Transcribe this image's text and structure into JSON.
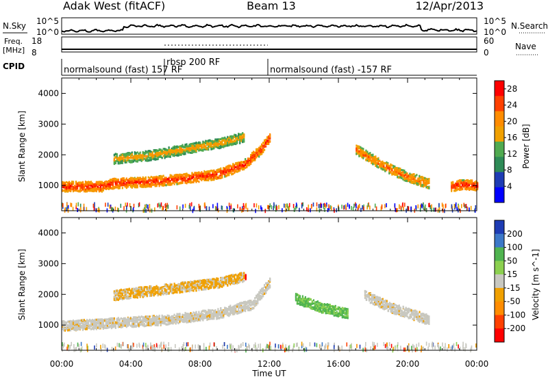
{
  "header": {
    "radar": "Adak West (fitACF)",
    "beam": "Beam 13",
    "date": "12/Apr/2013"
  },
  "strip_panels": {
    "nsky_label": "N.Sky",
    "nsearch_label": "N.Search",
    "freq_label": "Freq.",
    "freq_unit": "[MHz]",
    "nave_label": "Nave",
    "cpid_label": "CPID",
    "noise_ticks_left": [
      "10^5",
      "10^0"
    ],
    "noise_ticks_right": [
      "10^5",
      "10^0"
    ],
    "freq_ticks": [
      "18",
      "8"
    ],
    "nave_ticks": [
      "60",
      "0"
    ],
    "cpid_segments": [
      {
        "label": "normalsound (fast) 157 RF",
        "start_h": 0.0,
        "end_h": 6.0
      },
      {
        "label": "rbsp 200 RF",
        "start_h": 6.0,
        "end_h": 12.0
      },
      {
        "label": "normalsound (fast) -157 RF",
        "start_h": 12.0,
        "end_h": 24.0
      }
    ]
  },
  "colors": {
    "power_scale": [
      "#0000ff",
      "#1e3cb4",
      "#2e8b57",
      "#50aa50",
      "#f0a000",
      "#ff8c00",
      "#ff4000",
      "#ff0000"
    ],
    "velocity_scale": [
      "#1e3cb4",
      "#3c78c8",
      "#50b450",
      "#8cd050",
      "#c8c8c0",
      "#f0a000",
      "#ff8c00",
      "#ff4000",
      "#ff0000"
    ],
    "ground_scatter": "#a0a0a0"
  },
  "chart_data": [
    {
      "type": "heatmap",
      "panel": "power",
      "ylabel": "Slant Range [km]",
      "xlabel": "Time UT",
      "x_ticks": [
        "00:00",
        "04:00",
        "08:00",
        "12:00",
        "16:00",
        "20:00",
        "00:00"
      ],
      "xlim_hours": [
        0,
        24
      ],
      "ylim_km": [
        180,
        4500
      ],
      "y_ticks": [
        1000,
        2000,
        3000,
        4000
      ],
      "colorbar": {
        "label": "Power [dB]",
        "ticks": [
          4,
          8,
          12,
          16,
          20,
          24,
          28
        ],
        "range": [
          0,
          30
        ]
      },
      "features": [
        {
          "name": "near band",
          "t": [
            0.0,
            1.0,
            2.0,
            2.3,
            3.0,
            5.0,
            7.0,
            9.0,
            10.5,
            11.5,
            12.0
          ],
          "range_km": [
            1000,
            1000,
            1000,
            1000,
            1100,
            1150,
            1250,
            1400,
            1700,
            2200,
            2600
          ],
          "power_db": 28
        },
        {
          "name": "upper band",
          "t": [
            3.0,
            5.0,
            7.0,
            9.0,
            10.5
          ],
          "range_km": [
            1900,
            2000,
            2200,
            2400,
            2600
          ],
          "power_db": 20
        },
        {
          "name": "evening band",
          "t": [
            17.0,
            18.5,
            20.0,
            21.2
          ],
          "range_km": [
            2200,
            1700,
            1300,
            1100
          ],
          "power_db": 24
        },
        {
          "name": "late band",
          "t": [
            22.5,
            23.0,
            23.6,
            24.0
          ],
          "range_km": [
            1000,
            1050,
            1050,
            1000
          ],
          "power_db": 28
        }
      ]
    },
    {
      "type": "heatmap",
      "panel": "velocity",
      "ylabel": "Slant Range [km]",
      "xlabel": "Time UT",
      "x_ticks": [
        "00:00",
        "04:00",
        "08:00",
        "12:00",
        "16:00",
        "20:00",
        "00:00"
      ],
      "xlim_hours": [
        0,
        24
      ],
      "ylim_km": [
        180,
        4500
      ],
      "y_ticks": [
        1000,
        2000,
        3000,
        4000
      ],
      "colorbar": {
        "label": "Velocity [m s^-1]",
        "ticks": [
          200,
          100,
          50,
          15,
          -15,
          -50,
          -100,
          -200
        ],
        "range": [
          -250,
          250
        ]
      },
      "features": [
        {
          "name": "ground scatter",
          "t": [
            0.0,
            3.0,
            6.0,
            9.0,
            11.0,
            12.0
          ],
          "range_km": [
            1000,
            1100,
            1200,
            1400,
            1700,
            2400
          ],
          "velocity": 0
        },
        {
          "name": "upper band",
          "t": [
            3.0,
            6.0,
            9.0,
            10.5
          ],
          "range_km": [
            2000,
            2200,
            2400,
            2600
          ],
          "velocity": -40
        },
        {
          "name": "red patch",
          "t": [
            10.6
          ],
          "range_km": [
            2600
          ],
          "velocity": -220
        },
        {
          "name": "green scatter",
          "t": [
            13.5,
            15.0,
            16.5
          ],
          "range_km": [
            1900,
            1600,
            1400
          ],
          "velocity": 30
        },
        {
          "name": "evening ground scatter",
          "t": [
            17.5,
            19.0,
            21.2
          ],
          "range_km": [
            2000,
            1600,
            1200
          ],
          "velocity": 0
        }
      ]
    }
  ]
}
